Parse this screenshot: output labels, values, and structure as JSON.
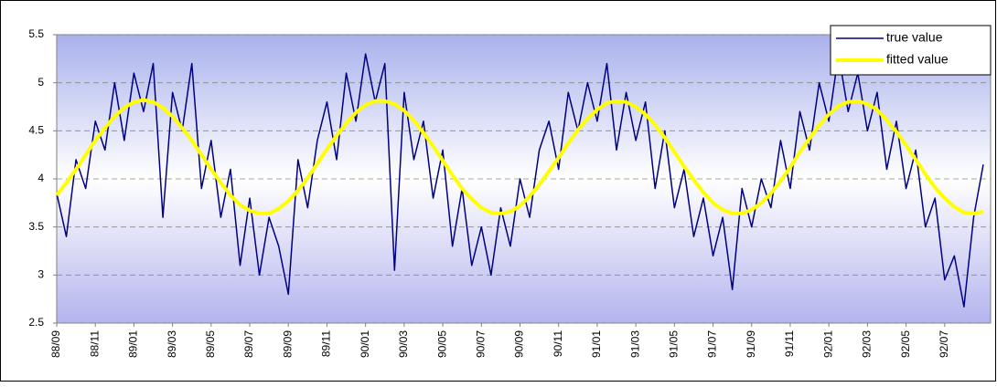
{
  "chart_data": {
    "type": "line",
    "categories": [
      "88/09",
      null,
      null,
      null,
      "88/11",
      null,
      null,
      null,
      "89/01",
      null,
      null,
      null,
      "89/03",
      null,
      null,
      null,
      "89/05",
      null,
      null,
      null,
      "89/07",
      null,
      null,
      null,
      "89/09",
      null,
      null,
      null,
      "89/11",
      null,
      null,
      null,
      "90/01",
      null,
      null,
      null,
      "90/03",
      null,
      null,
      null,
      "90/05",
      null,
      null,
      null,
      "90/07",
      null,
      null,
      null,
      "90/09",
      null,
      null,
      null,
      "90/11",
      null,
      null,
      null,
      "91/01",
      null,
      null,
      null,
      "91/03",
      null,
      null,
      null,
      "91/05",
      null,
      null,
      null,
      "91/07",
      null,
      null,
      null,
      "91/09",
      null,
      null,
      null,
      "91/11",
      null,
      null,
      null,
      "92/01",
      null,
      null,
      null,
      "92/03",
      null,
      null,
      null,
      "92/05",
      null,
      null,
      null,
      "92/07",
      null,
      null,
      null,
      null
    ],
    "series": [
      {
        "name": "true value",
        "color": "#000080",
        "width": 1.5,
        "values": [
          3.85,
          3.4,
          4.2,
          3.9,
          4.6,
          4.3,
          5.0,
          4.4,
          5.1,
          4.7,
          5.2,
          3.6,
          4.9,
          4.5,
          5.2,
          3.9,
          4.4,
          3.6,
          4.1,
          3.1,
          3.8,
          3.0,
          3.6,
          3.3,
          2.8,
          4.2,
          3.7,
          4.4,
          4.8,
          4.2,
          5.1,
          4.6,
          5.3,
          4.8,
          5.2,
          3.05,
          4.9,
          4.2,
          4.6,
          3.8,
          4.3,
          3.3,
          3.9,
          3.1,
          3.5,
          3.0,
          3.7,
          3.3,
          4.0,
          3.6,
          4.3,
          4.6,
          4.1,
          4.9,
          4.5,
          5.0,
          4.6,
          5.2,
          4.3,
          4.9,
          4.4,
          4.8,
          3.9,
          4.5,
          3.7,
          4.1,
          3.4,
          3.8,
          3.2,
          3.6,
          2.85,
          3.9,
          3.5,
          4.0,
          3.7,
          4.4,
          3.9,
          4.7,
          4.3,
          5.0,
          4.6,
          5.3,
          4.7,
          5.1,
          4.5,
          4.9,
          4.1,
          4.6,
          3.9,
          4.3,
          3.5,
          3.8,
          2.95,
          3.2,
          2.67,
          3.6,
          4.15
        ]
      },
      {
        "name": "fitted value",
        "color": "#ffff00",
        "width": 4,
        "values": [
          3.83,
          3.96,
          4.1,
          4.25,
          4.4,
          4.53,
          4.65,
          4.74,
          4.8,
          4.82,
          4.8,
          4.74,
          4.65,
          4.53,
          4.4,
          4.25,
          4.1,
          3.96,
          3.83,
          3.73,
          3.67,
          3.64,
          3.64,
          3.69,
          3.77,
          3.88,
          4.01,
          4.16,
          4.31,
          4.45,
          4.58,
          4.69,
          4.77,
          4.81,
          4.81,
          4.78,
          4.71,
          4.61,
          4.48,
          4.34,
          4.19,
          4.04,
          3.9,
          3.79,
          3.7,
          3.65,
          3.64,
          3.66,
          3.72,
          3.82,
          3.94,
          4.08,
          4.22,
          4.37,
          4.51,
          4.63,
          4.72,
          4.79,
          4.81,
          4.8,
          4.75,
          4.67,
          4.56,
          4.43,
          4.28,
          4.13,
          3.99,
          3.86,
          3.75,
          3.68,
          3.64,
          3.64,
          3.68,
          3.75,
          3.85,
          3.98,
          4.12,
          4.28,
          4.42,
          4.56,
          4.67,
          4.76,
          4.8,
          4.81,
          4.78,
          4.72,
          4.61,
          4.49,
          4.35,
          4.2,
          4.05,
          3.91,
          3.8,
          3.71,
          3.65,
          3.64,
          3.66
        ]
      }
    ],
    "ylim": [
      2.5,
      5.5
    ],
    "yticks": [
      2.5,
      3,
      3.5,
      4,
      4.5,
      5,
      5.5
    ],
    "grid": true,
    "legend": "upper right"
  }
}
